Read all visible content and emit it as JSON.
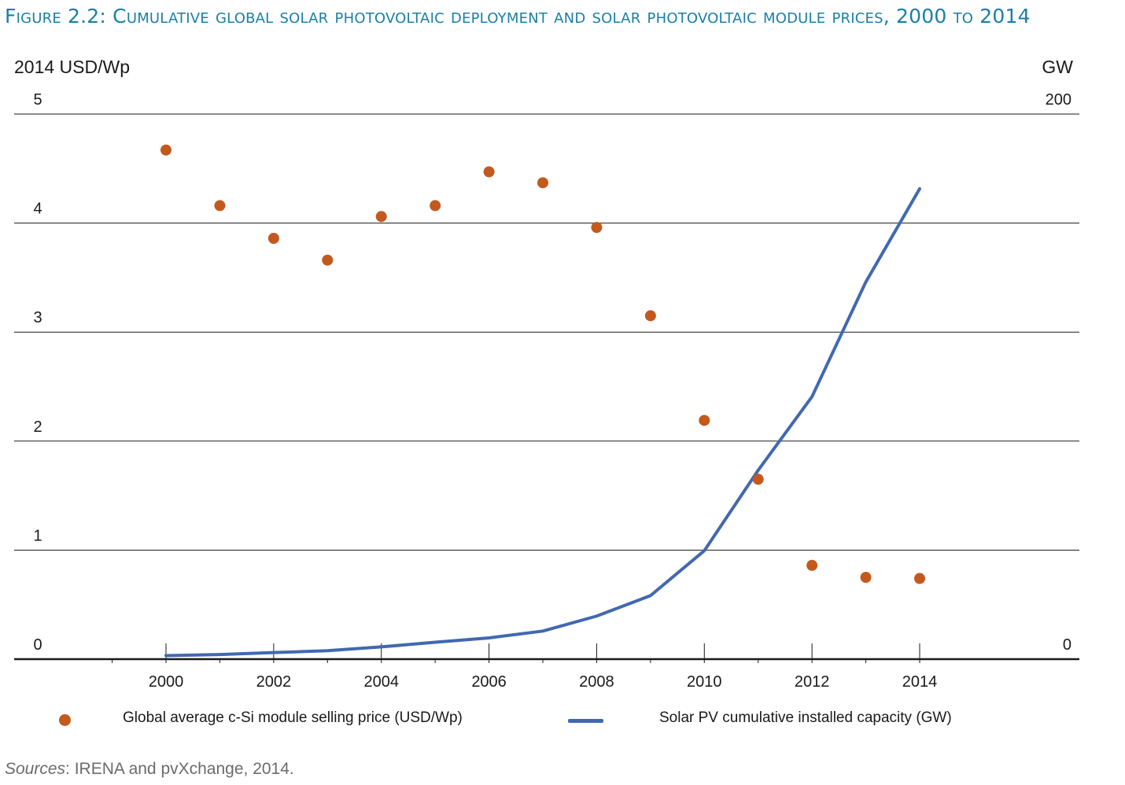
{
  "figure": {
    "title": "Figure 2.2: Cumulative global solar photovoltaic deployment and solar photovoltaic module prices, 2000 to 2014"
  },
  "sources": {
    "label": "Sources",
    "text": ": IRENA and pvXchange, 2014."
  },
  "colors": {
    "price_series": "#c4591d",
    "capacity_series": "#4169b0",
    "title": "#1a7fa6",
    "gridline": "#1a1a1a"
  },
  "chart_data": {
    "type": "line",
    "title": "Figure 2.2: Cumulative global solar photovoltaic deployment and solar photovoltaic module prices, 2000 to 2014",
    "left_axis": {
      "unit_label": "2014 USD/Wp",
      "range": [
        0,
        5
      ],
      "ticks": [
        "0",
        "1",
        "2",
        "3",
        "4",
        "5"
      ]
    },
    "right_axis": {
      "unit_label": "GW",
      "range": [
        0,
        200
      ],
      "ticks": [
        "0",
        "200"
      ]
    },
    "x_axis": {
      "range": [
        1998,
        2015
      ],
      "tick_values": [
        2000,
        2002,
        2004,
        2006,
        2008,
        2010,
        2012,
        2014
      ],
      "tick_labels": [
        "2000",
        "2002",
        "2004",
        "2006",
        "2008",
        "2010",
        "2012",
        "2014"
      ],
      "minor_ticks": [
        1999,
        2000,
        2001,
        2002,
        2003,
        2004,
        2005,
        2006,
        2007,
        2008,
        2009,
        2010,
        2011,
        2012,
        2013,
        2014
      ]
    },
    "grid": true,
    "legend_position": "bottom",
    "series": [
      {
        "name": "Global average c-Si module selling price (USD/Wp)",
        "kind": "scatter",
        "axis": "left",
        "x": [
          2000,
          2001,
          2002,
          2003,
          2004,
          2005,
          2006,
          2007,
          2008,
          2009,
          2010,
          2011,
          2012,
          2013,
          2014
        ],
        "values": [
          4.67,
          4.16,
          3.86,
          3.66,
          4.06,
          4.16,
          4.47,
          4.37,
          3.96,
          3.15,
          2.19,
          1.65,
          0.86,
          0.75,
          0.74
        ]
      },
      {
        "name": "Solar PV cumulative installed capacity (GW)",
        "kind": "line",
        "axis": "right",
        "x": [
          2000,
          2001,
          2002,
          2003,
          2004,
          2005,
          2006,
          2007,
          2008,
          2009,
          2010,
          2011,
          2012,
          2013,
          2014
        ],
        "values": [
          1.3,
          1.7,
          2.4,
          3.1,
          4.5,
          6.2,
          7.8,
          10.3,
          15.8,
          23.3,
          39.8,
          69.3,
          96.3,
          138.4,
          172.6
        ]
      }
    ]
  }
}
